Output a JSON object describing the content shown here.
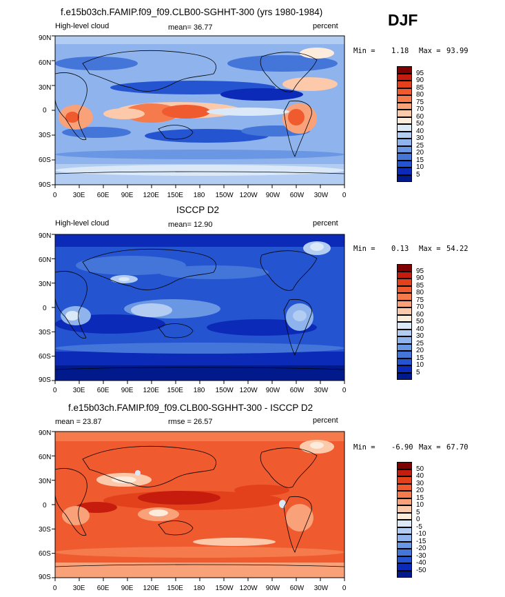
{
  "season": "DJF",
  "panels": [
    {
      "title": "f.e15b03ch.FAMIP.f09_f09.CLB00-SGHHT-300 (yrs 1980-1984)",
      "left_label": "High-level cloud",
      "center_label": "mean=  36.77",
      "right_label": "percent",
      "min_label": "Min =",
      "min_value": "1.18",
      "max_label": "Max =",
      "max_value": "93.99",
      "colorbar_levels": [
        "95",
        "90",
        "85",
        "80",
        "75",
        "70",
        "60",
        "50",
        "40",
        "30",
        "25",
        "20",
        "15",
        "10",
        "5"
      ],
      "colorbar_colors": [
        "#7f0000",
        "#c51c0e",
        "#e3401c",
        "#ef5a2f",
        "#f57a4c",
        "#f9a27a",
        "#fcc9aa",
        "#fdebdc",
        "#dae8f8",
        "#b3cdf2",
        "#8fb3ec",
        "#6a97e4",
        "#4476da",
        "#2454cf",
        "#0b2ab8",
        "#001a8c"
      ]
    },
    {
      "title": "ISCCP D2",
      "left_label": "High-level cloud",
      "center_label": "mean=  12.90",
      "right_label": "percent",
      "min_label": "Min =",
      "min_value": "0.13",
      "max_label": "Max =",
      "max_value": "54.22",
      "colorbar_levels": [
        "95",
        "90",
        "85",
        "80",
        "75",
        "70",
        "60",
        "50",
        "40",
        "30",
        "25",
        "20",
        "15",
        "10",
        "5"
      ],
      "colorbar_colors": [
        "#7f0000",
        "#c51c0e",
        "#e3401c",
        "#ef5a2f",
        "#f57a4c",
        "#f9a27a",
        "#fcc9aa",
        "#fdebdc",
        "#dae8f8",
        "#b3cdf2",
        "#8fb3ec",
        "#6a97e4",
        "#4476da",
        "#2454cf",
        "#0b2ab8",
        "#001a8c"
      ]
    },
    {
      "title": "f.e15b03ch.FAMIP.f09_f09.CLB00-SGHHT-300 - ISCCP D2",
      "left_label": "mean =  23.87",
      "center_label": "rmse =  26.57",
      "right_label": "percent",
      "min_label": "Min =",
      "min_value": "-6.90",
      "max_label": "Max =",
      "max_value": "67.70",
      "colorbar_levels": [
        "50",
        "40",
        "30",
        "20",
        "15",
        "10",
        "5",
        "0",
        "-5",
        "-10",
        "-15",
        "-20",
        "-30",
        "-40",
        "-50"
      ],
      "colorbar_colors": [
        "#7f0000",
        "#c51c0e",
        "#e3401c",
        "#ef5a2f",
        "#f57a4c",
        "#f9a27a",
        "#fcc9aa",
        "#fdebdc",
        "#dae8f8",
        "#b3cdf2",
        "#8fb3ec",
        "#6a97e4",
        "#4476da",
        "#2454cf",
        "#0b2ab8",
        "#001a8c"
      ]
    }
  ],
  "chart_data": [
    {
      "type": "heatmap",
      "title": "f.e15b03ch.FAMIP.f09_f09.CLB00-SGHHT-300 (yrs 1980-1984)",
      "variable": "High-level cloud",
      "units": "percent",
      "mean": 36.77,
      "min": 1.18,
      "max": 93.99,
      "x_ticks": [
        "0",
        "30E",
        "60E",
        "90E",
        "120E",
        "150E",
        "180",
        "150W",
        "120W",
        "90W",
        "60W",
        "30W",
        "0"
      ],
      "y_ticks": [
        "90N",
        "60N",
        "30N",
        "0",
        "30S",
        "60S",
        "90S"
      ],
      "contour_levels": [
        5,
        10,
        15,
        20,
        25,
        30,
        40,
        50,
        60,
        70,
        75,
        80,
        85,
        90,
        95
      ]
    },
    {
      "type": "heatmap",
      "title": "ISCCP D2",
      "variable": "High-level cloud",
      "units": "percent",
      "mean": 12.9,
      "min": 0.13,
      "max": 54.22,
      "x_ticks": [
        "0",
        "30E",
        "60E",
        "90E",
        "120E",
        "150E",
        "180",
        "150W",
        "120W",
        "90W",
        "60W",
        "30W",
        "0"
      ],
      "y_ticks": [
        "90N",
        "60N",
        "30N",
        "0",
        "30S",
        "60S",
        "90S"
      ],
      "contour_levels": [
        5,
        10,
        15,
        20,
        25,
        30,
        40,
        50,
        60,
        70,
        75,
        80,
        85,
        90,
        95
      ]
    },
    {
      "type": "heatmap",
      "title": "f.e15b03ch.FAMIP.f09_f09.CLB00-SGHHT-300 - ISCCP D2",
      "units": "percent",
      "mean": 23.87,
      "rmse": 26.57,
      "min": -6.9,
      "max": 67.7,
      "x_ticks": [
        "0",
        "30E",
        "60E",
        "90E",
        "120E",
        "150E",
        "180",
        "150W",
        "120W",
        "90W",
        "60W",
        "30W",
        "0"
      ],
      "y_ticks": [
        "90N",
        "60N",
        "30N",
        "0",
        "30S",
        "60S",
        "90S"
      ],
      "contour_levels": [
        -50,
        -40,
        -30,
        -20,
        -15,
        -10,
        -5,
        0,
        5,
        10,
        15,
        20,
        30,
        40,
        50
      ]
    }
  ]
}
